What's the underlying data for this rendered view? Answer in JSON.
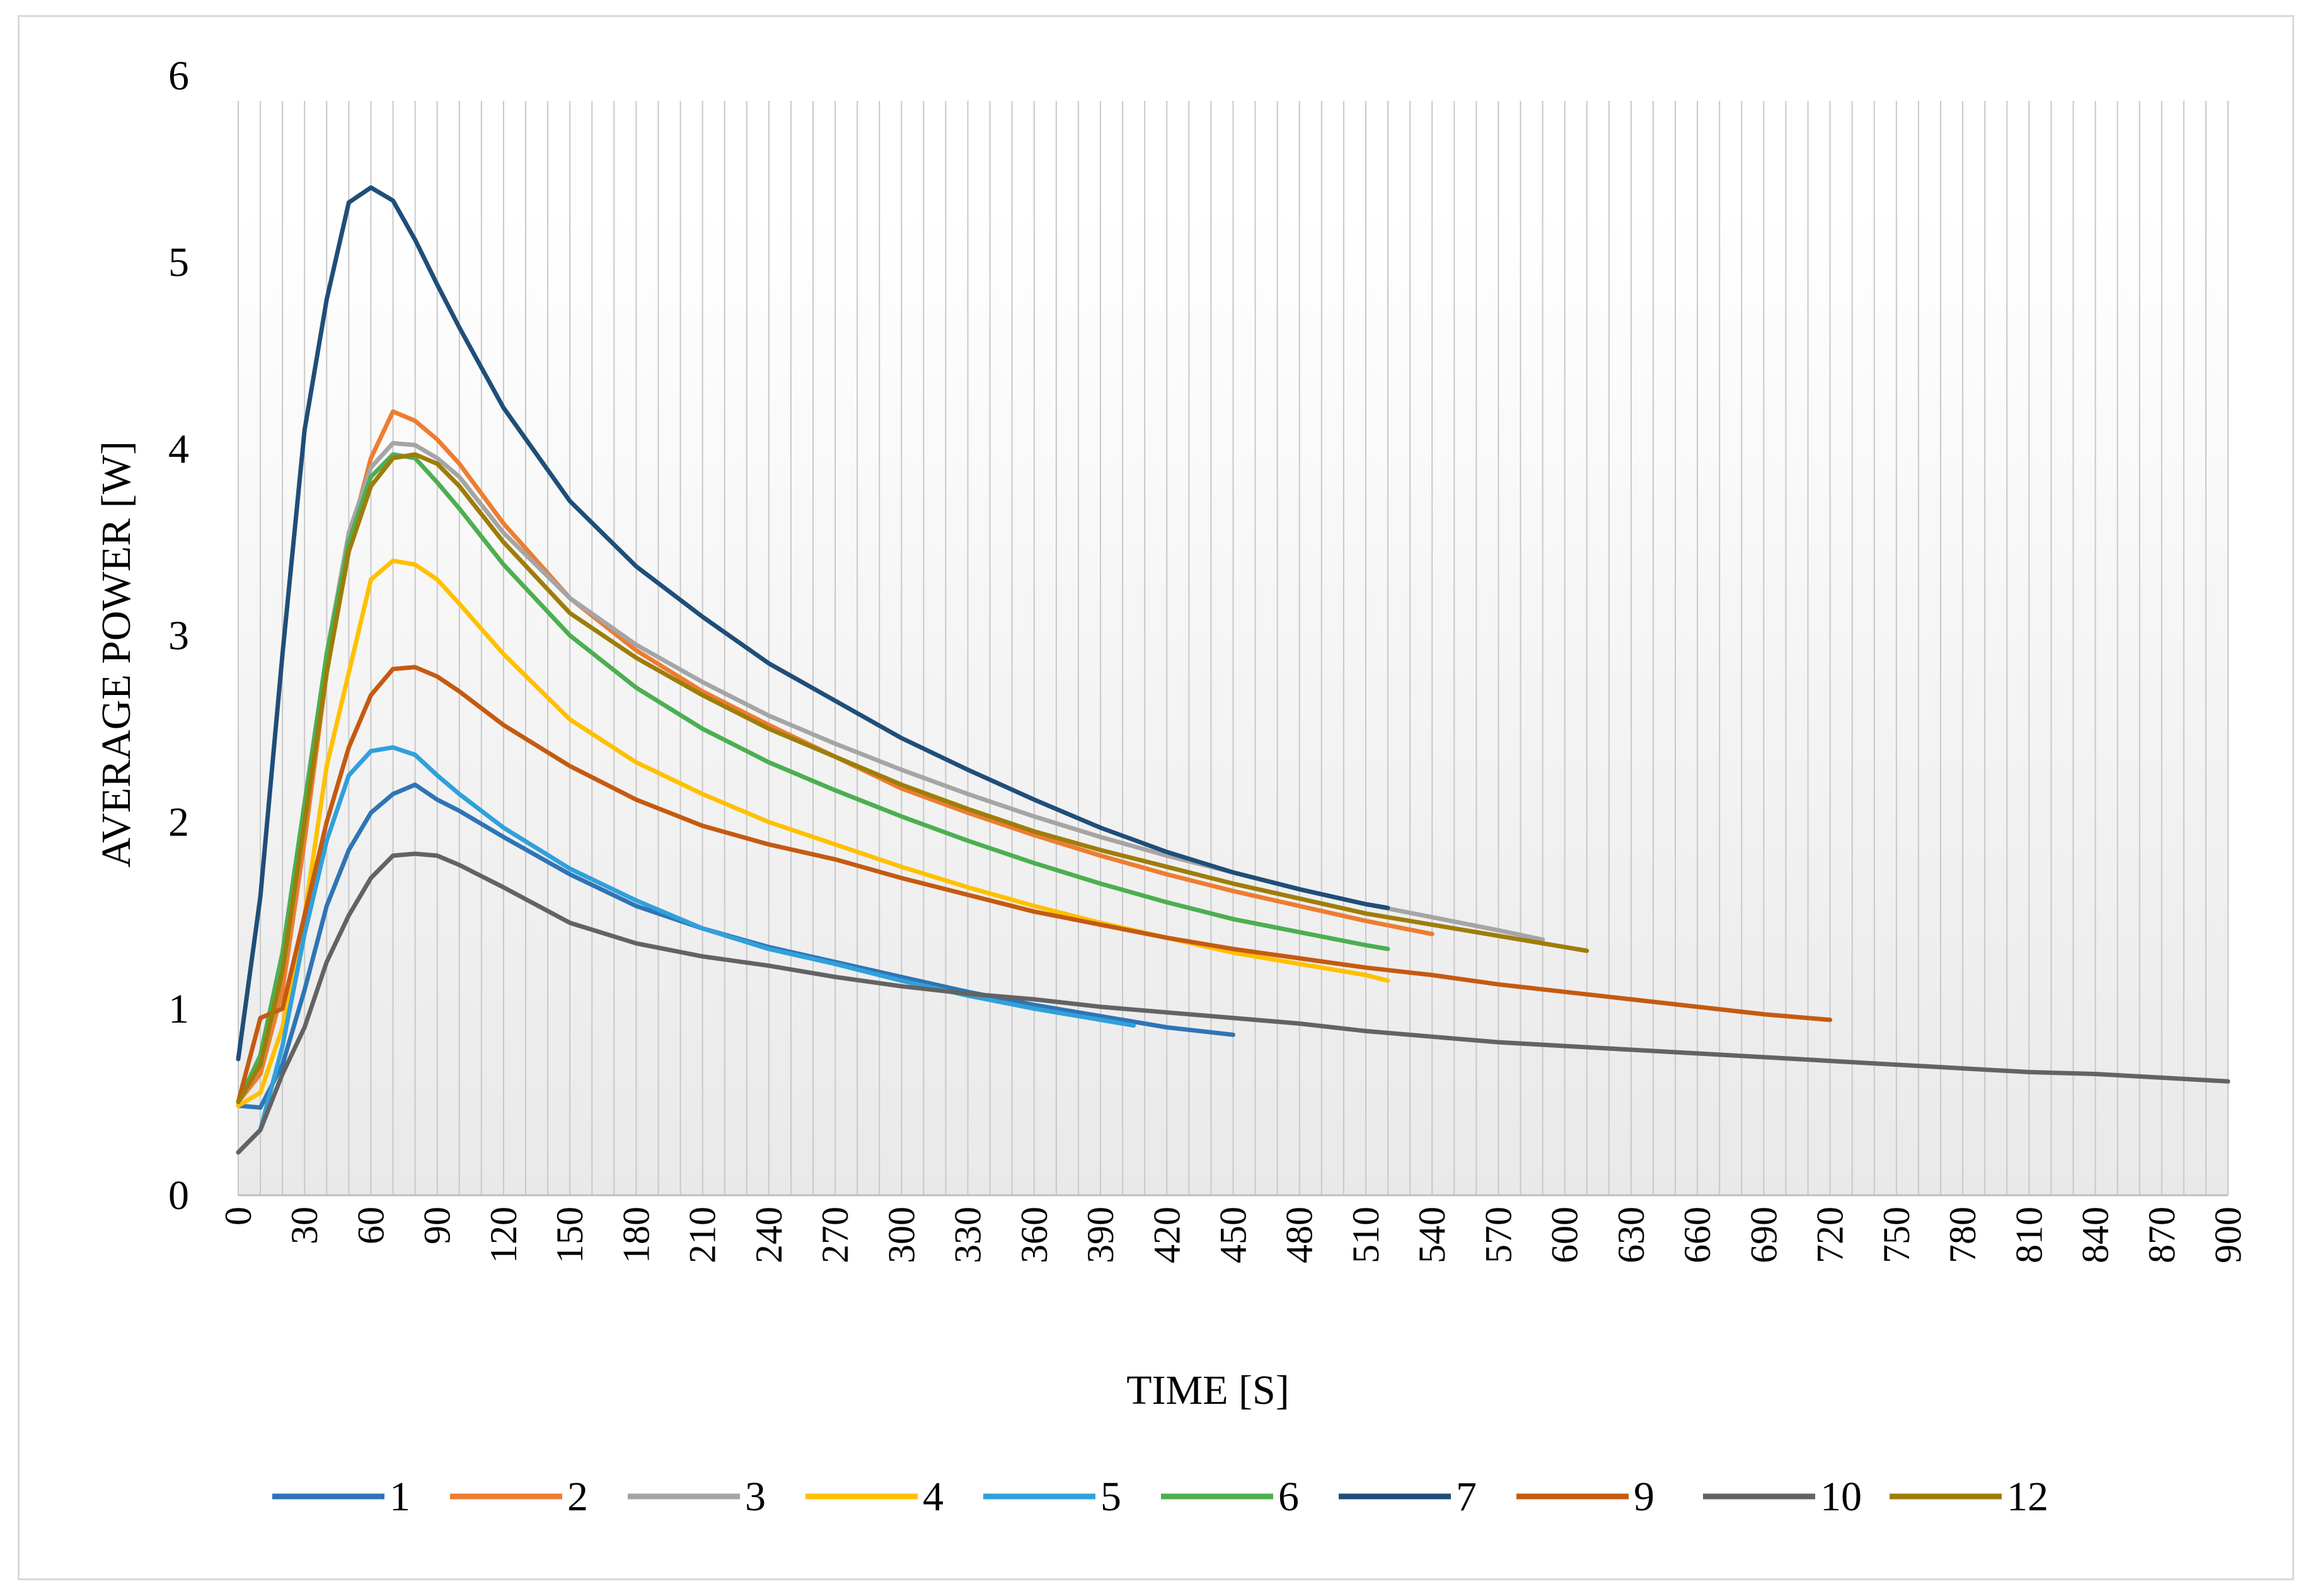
{
  "chart_data": {
    "type": "line",
    "title": "",
    "xlabel": "TIME [S]",
    "ylabel": "AVERAGE POWER [W]",
    "xlim": [
      0,
      900
    ],
    "ylim": [
      0,
      6
    ],
    "x_tick_labels": [
      "0",
      "30",
      "60",
      "90",
      "120",
      "150",
      "180",
      "210",
      "240",
      "270",
      "300",
      "330",
      "360",
      "390",
      "420",
      "450",
      "480",
      "510",
      "540",
      "570",
      "600",
      "630",
      "660",
      "690",
      "720",
      "750",
      "780",
      "810",
      "840",
      "870",
      "900"
    ],
    "y_tick_labels": [
      "0",
      "1",
      "2",
      "3",
      "4",
      "5",
      "6"
    ],
    "legend_position": "bottom",
    "series": [
      {
        "name": "1",
        "color": "#2e75b6",
        "points": [
          [
            0,
            0.48
          ],
          [
            10,
            0.47
          ],
          [
            20,
            0.7
          ],
          [
            30,
            1.1
          ],
          [
            40,
            1.55
          ],
          [
            50,
            1.85
          ],
          [
            60,
            2.05
          ],
          [
            70,
            2.15
          ],
          [
            80,
            2.2
          ],
          [
            90,
            2.12
          ],
          [
            100,
            2.06
          ],
          [
            120,
            1.92
          ],
          [
            150,
            1.72
          ],
          [
            180,
            1.55
          ],
          [
            210,
            1.43
          ],
          [
            240,
            1.33
          ],
          [
            270,
            1.25
          ],
          [
            300,
            1.17
          ],
          [
            330,
            1.09
          ],
          [
            360,
            1.02
          ],
          [
            390,
            0.96
          ],
          [
            420,
            0.9
          ],
          [
            450,
            0.86
          ]
        ]
      },
      {
        "name": "2",
        "color": "#ed7d31",
        "points": [
          [
            0,
            0.5
          ],
          [
            10,
            0.65
          ],
          [
            20,
            1.1
          ],
          [
            30,
            1.9
          ],
          [
            40,
            2.8
          ],
          [
            50,
            3.5
          ],
          [
            60,
            3.95
          ],
          [
            70,
            4.2
          ],
          [
            80,
            4.15
          ],
          [
            90,
            4.05
          ],
          [
            100,
            3.92
          ],
          [
            120,
            3.6
          ],
          [
            150,
            3.2
          ],
          [
            180,
            2.92
          ],
          [
            210,
            2.7
          ],
          [
            240,
            2.52
          ],
          [
            270,
            2.35
          ],
          [
            300,
            2.18
          ],
          [
            330,
            2.05
          ],
          [
            360,
            1.93
          ],
          [
            390,
            1.82
          ],
          [
            420,
            1.72
          ],
          [
            450,
            1.63
          ],
          [
            480,
            1.55
          ],
          [
            510,
            1.47
          ],
          [
            540,
            1.4
          ]
        ]
      },
      {
        "name": "3",
        "color": "#a5a5a5",
        "points": [
          [
            0,
            0.5
          ],
          [
            10,
            0.7
          ],
          [
            20,
            1.2
          ],
          [
            30,
            2.0
          ],
          [
            40,
            2.9
          ],
          [
            50,
            3.55
          ],
          [
            60,
            3.9
          ],
          [
            70,
            4.03
          ],
          [
            80,
            4.02
          ],
          [
            90,
            3.95
          ],
          [
            100,
            3.85
          ],
          [
            120,
            3.55
          ],
          [
            150,
            3.2
          ],
          [
            180,
            2.95
          ],
          [
            210,
            2.75
          ],
          [
            240,
            2.57
          ],
          [
            270,
            2.42
          ],
          [
            300,
            2.28
          ],
          [
            330,
            2.15
          ],
          [
            360,
            2.03
          ],
          [
            390,
            1.92
          ],
          [
            420,
            1.82
          ],
          [
            450,
            1.73
          ],
          [
            480,
            1.64
          ],
          [
            510,
            1.56
          ],
          [
            540,
            1.49
          ],
          [
            570,
            1.42
          ],
          [
            590,
            1.37
          ]
        ]
      },
      {
        "name": "4",
        "color": "#ffc000",
        "points": [
          [
            0,
            0.48
          ],
          [
            10,
            0.55
          ],
          [
            20,
            0.9
          ],
          [
            30,
            1.5
          ],
          [
            40,
            2.3
          ],
          [
            50,
            2.8
          ],
          [
            60,
            3.3
          ],
          [
            70,
            3.4
          ],
          [
            80,
            3.38
          ],
          [
            90,
            3.3
          ],
          [
            100,
            3.17
          ],
          [
            120,
            2.9
          ],
          [
            150,
            2.55
          ],
          [
            180,
            2.32
          ],
          [
            210,
            2.15
          ],
          [
            240,
            2.0
          ],
          [
            270,
            1.88
          ],
          [
            300,
            1.76
          ],
          [
            330,
            1.65
          ],
          [
            360,
            1.55
          ],
          [
            390,
            1.46
          ],
          [
            420,
            1.38
          ],
          [
            450,
            1.3
          ],
          [
            480,
            1.24
          ],
          [
            510,
            1.18
          ],
          [
            520,
            1.15
          ]
        ]
      },
      {
        "name": "5",
        "color": "#31a0db",
        "points": [
          [
            0,
            0.23
          ],
          [
            10,
            0.35
          ],
          [
            20,
            0.8
          ],
          [
            30,
            1.4
          ],
          [
            40,
            1.9
          ],
          [
            50,
            2.25
          ],
          [
            60,
            2.38
          ],
          [
            70,
            2.4
          ],
          [
            80,
            2.36
          ],
          [
            90,
            2.25
          ],
          [
            100,
            2.15
          ],
          [
            120,
            1.97
          ],
          [
            150,
            1.75
          ],
          [
            180,
            1.58
          ],
          [
            210,
            1.43
          ],
          [
            240,
            1.32
          ],
          [
            270,
            1.24
          ],
          [
            300,
            1.15
          ],
          [
            330,
            1.07
          ],
          [
            360,
            1.0
          ],
          [
            390,
            0.94
          ],
          [
            405,
            0.91
          ]
        ]
      },
      {
        "name": "6",
        "color": "#4caf50",
        "points": [
          [
            0,
            0.5
          ],
          [
            10,
            0.75
          ],
          [
            20,
            1.3
          ],
          [
            30,
            2.1
          ],
          [
            40,
            2.9
          ],
          [
            50,
            3.5
          ],
          [
            60,
            3.85
          ],
          [
            70,
            3.97
          ],
          [
            80,
            3.95
          ],
          [
            90,
            3.82
          ],
          [
            100,
            3.68
          ],
          [
            120,
            3.38
          ],
          [
            150,
            3.0
          ],
          [
            180,
            2.72
          ],
          [
            210,
            2.5
          ],
          [
            240,
            2.32
          ],
          [
            270,
            2.17
          ],
          [
            300,
            2.03
          ],
          [
            330,
            1.9
          ],
          [
            360,
            1.78
          ],
          [
            390,
            1.67
          ],
          [
            420,
            1.57
          ],
          [
            450,
            1.48
          ],
          [
            480,
            1.41
          ],
          [
            510,
            1.34
          ],
          [
            520,
            1.32
          ]
        ]
      },
      {
        "name": "7",
        "color": "#1f4e79",
        "points": [
          [
            0,
            0.73
          ],
          [
            10,
            1.6
          ],
          [
            20,
            2.9
          ],
          [
            30,
            4.1
          ],
          [
            40,
            4.8
          ],
          [
            50,
            5.32
          ],
          [
            60,
            5.4
          ],
          [
            70,
            5.33
          ],
          [
            80,
            5.12
          ],
          [
            90,
            4.88
          ],
          [
            100,
            4.65
          ],
          [
            120,
            4.22
          ],
          [
            150,
            3.72
          ],
          [
            180,
            3.37
          ],
          [
            210,
            3.1
          ],
          [
            240,
            2.85
          ],
          [
            270,
            2.65
          ],
          [
            300,
            2.45
          ],
          [
            330,
            2.28
          ],
          [
            360,
            2.12
          ],
          [
            390,
            1.97
          ],
          [
            420,
            1.84
          ],
          [
            450,
            1.73
          ],
          [
            480,
            1.64
          ],
          [
            510,
            1.56
          ],
          [
            520,
            1.54
          ]
        ]
      },
      {
        "name": "9",
        "color": "#c55a11",
        "points": [
          [
            0,
            0.5
          ],
          [
            10,
            0.95
          ],
          [
            20,
            1.0
          ],
          [
            30,
            1.5
          ],
          [
            40,
            2.0
          ],
          [
            50,
            2.4
          ],
          [
            60,
            2.68
          ],
          [
            70,
            2.82
          ],
          [
            80,
            2.83
          ],
          [
            90,
            2.78
          ],
          [
            100,
            2.7
          ],
          [
            120,
            2.52
          ],
          [
            150,
            2.3
          ],
          [
            180,
            2.12
          ],
          [
            210,
            1.98
          ],
          [
            240,
            1.88
          ],
          [
            270,
            1.8
          ],
          [
            300,
            1.7
          ],
          [
            330,
            1.61
          ],
          [
            360,
            1.52
          ],
          [
            390,
            1.45
          ],
          [
            420,
            1.38
          ],
          [
            450,
            1.32
          ],
          [
            480,
            1.27
          ],
          [
            510,
            1.22
          ],
          [
            540,
            1.18
          ],
          [
            570,
            1.13
          ],
          [
            600,
            1.09
          ],
          [
            630,
            1.05
          ],
          [
            660,
            1.01
          ],
          [
            690,
            0.97
          ],
          [
            720,
            0.94
          ]
        ]
      },
      {
        "name": "10",
        "color": "#636363",
        "points": [
          [
            0,
            0.23
          ],
          [
            10,
            0.35
          ],
          [
            20,
            0.65
          ],
          [
            30,
            0.9
          ],
          [
            40,
            1.25
          ],
          [
            50,
            1.5
          ],
          [
            60,
            1.7
          ],
          [
            70,
            1.82
          ],
          [
            80,
            1.83
          ],
          [
            90,
            1.82
          ],
          [
            100,
            1.77
          ],
          [
            120,
            1.65
          ],
          [
            150,
            1.46
          ],
          [
            180,
            1.35
          ],
          [
            210,
            1.28
          ],
          [
            240,
            1.23
          ],
          [
            270,
            1.17
          ],
          [
            300,
            1.12
          ],
          [
            330,
            1.08
          ],
          [
            360,
            1.05
          ],
          [
            390,
            1.01
          ],
          [
            420,
            0.98
          ],
          [
            450,
            0.95
          ],
          [
            480,
            0.92
          ],
          [
            510,
            0.88
          ],
          [
            540,
            0.85
          ],
          [
            570,
            0.82
          ],
          [
            600,
            0.8
          ],
          [
            630,
            0.78
          ],
          [
            660,
            0.76
          ],
          [
            690,
            0.74
          ],
          [
            720,
            0.72
          ],
          [
            750,
            0.7
          ],
          [
            780,
            0.68
          ],
          [
            810,
            0.66
          ],
          [
            840,
            0.65
          ],
          [
            870,
            0.63
          ],
          [
            900,
            0.61
          ]
        ]
      },
      {
        "name": "12",
        "color": "#9e7d0a",
        "points": [
          [
            0,
            0.5
          ],
          [
            10,
            0.7
          ],
          [
            20,
            1.2
          ],
          [
            30,
            2.0
          ],
          [
            40,
            2.8
          ],
          [
            50,
            3.45
          ],
          [
            60,
            3.8
          ],
          [
            70,
            3.95
          ],
          [
            80,
            3.97
          ],
          [
            90,
            3.92
          ],
          [
            100,
            3.8
          ],
          [
            120,
            3.5
          ],
          [
            150,
            3.12
          ],
          [
            180,
            2.88
          ],
          [
            210,
            2.68
          ],
          [
            240,
            2.5
          ],
          [
            270,
            2.35
          ],
          [
            300,
            2.2
          ],
          [
            330,
            2.07
          ],
          [
            360,
            1.95
          ],
          [
            390,
            1.85
          ],
          [
            420,
            1.76
          ],
          [
            450,
            1.67
          ],
          [
            480,
            1.59
          ],
          [
            510,
            1.51
          ],
          [
            540,
            1.45
          ],
          [
            570,
            1.39
          ],
          [
            600,
            1.33
          ],
          [
            610,
            1.31
          ]
        ]
      }
    ]
  }
}
